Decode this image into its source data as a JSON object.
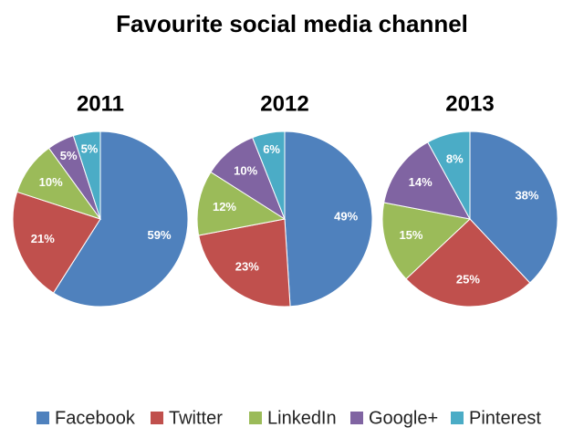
{
  "title": "Favourite social media channel",
  "chart_data": [
    {
      "type": "pie",
      "title": "2011",
      "categories": [
        "Facebook",
        "Twitter",
        "LinkedIn",
        "Google+",
        "Pinterest"
      ],
      "values": [
        59,
        21,
        10,
        5,
        5
      ],
      "value_labels": [
        "59%",
        "21%",
        "10%",
        "5%",
        "5%"
      ],
      "colors": [
        "#4f81bd",
        "#c0504d",
        "#9bbb59",
        "#8064a2",
        "#4bacc6"
      ]
    },
    {
      "type": "pie",
      "title": "2012",
      "categories": [
        "Facebook",
        "Twitter",
        "LinkedIn",
        "Google+",
        "Pinterest"
      ],
      "values": [
        49,
        23,
        12,
        10,
        6
      ],
      "value_labels": [
        "49%",
        "23%",
        "12%",
        "10%",
        "6%"
      ],
      "colors": [
        "#4f81bd",
        "#c0504d",
        "#9bbb59",
        "#8064a2",
        "#4bacc6"
      ]
    },
    {
      "type": "pie",
      "title": "2013",
      "categories": [
        "Facebook",
        "Twitter",
        "LinkedIn",
        "Google+",
        "Pinterest"
      ],
      "values": [
        38,
        25,
        15,
        14,
        8
      ],
      "value_labels": [
        "38%",
        "25%",
        "15%",
        "14%",
        "8%"
      ],
      "colors": [
        "#4f81bd",
        "#c0504d",
        "#9bbb59",
        "#8064a2",
        "#4bacc6"
      ]
    }
  ]
}
